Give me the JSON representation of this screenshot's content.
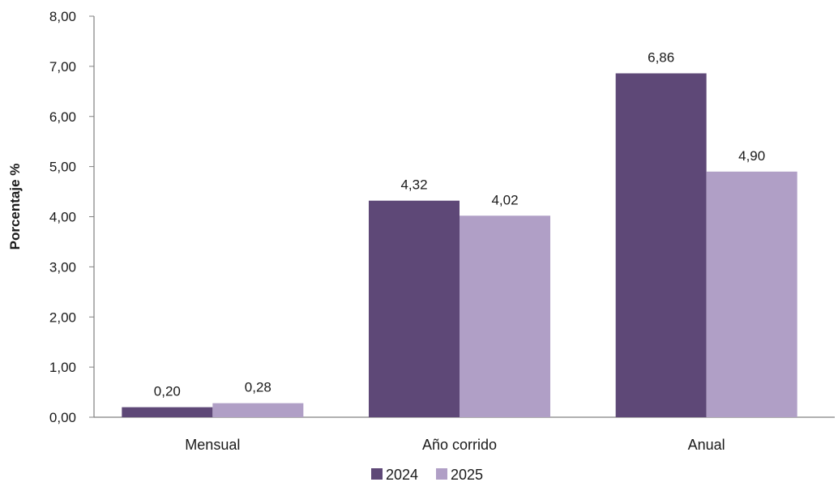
{
  "chart_data": {
    "type": "bar",
    "title": "",
    "xlabel": "",
    "ylabel": "Porcentaje %",
    "categories": [
      "Mensual",
      "Año corrido",
      "Anual"
    ],
    "series": [
      {
        "name": "2024",
        "color": "#5e4877",
        "values": [
          0.2,
          4.32,
          6.86
        ],
        "labels": [
          "0,20",
          "4,32",
          "6,86"
        ]
      },
      {
        "name": "2025",
        "color": "#b09fc6",
        "values": [
          0.28,
          4.02,
          4.9
        ],
        "labels": [
          "0,28",
          "4,02",
          "4,90"
        ]
      }
    ],
    "ylim": [
      0,
      8
    ],
    "yticks": [
      0,
      1,
      2,
      3,
      4,
      5,
      6,
      7,
      8
    ],
    "ytick_labels": [
      "0,00",
      "1,00",
      "2,00",
      "3,00",
      "4,00",
      "5,00",
      "6,00",
      "7,00",
      "8,00"
    ],
    "grid": false,
    "legend_position": "bottom-center",
    "axis_color": "#808080"
  }
}
